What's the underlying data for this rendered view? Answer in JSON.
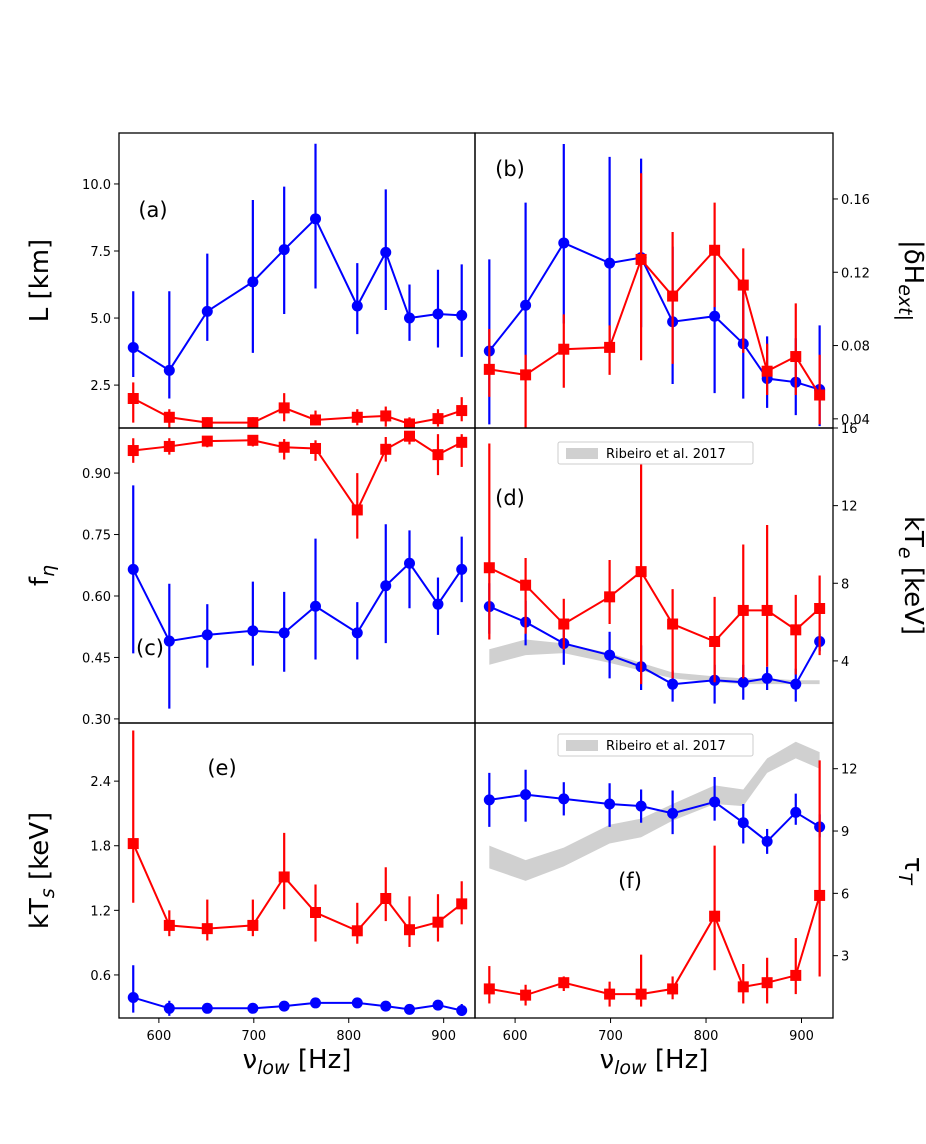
{
  "chart_data": [
    {
      "panel": "a",
      "type": "line",
      "panel_label": "(a)",
      "xlabel": "",
      "ylabel": "L [km]",
      "ylabel_side": "left",
      "xlim": [
        558,
        933
      ],
      "ylim": [
        0.9,
        11.9
      ],
      "yticks": [
        2.5,
        5.0,
        7.5,
        10.0
      ],
      "ytick_labels": [
        "2.5",
        "5.0",
        "7.5",
        "10.0"
      ],
      "x_ticks_shown": false,
      "series": [
        {
          "name": "blue",
          "color": "#0000ff",
          "marker": "circle",
          "x": [
            573,
            611,
            651,
            699,
            732,
            765,
            809,
            839,
            864,
            894,
            919
          ],
          "y": [
            3.9,
            3.05,
            5.25,
            6.35,
            7.55,
            8.7,
            5.45,
            7.45,
            5.0,
            5.15,
            5.1
          ],
          "err_low": [
            1.1,
            1.05,
            1.1,
            2.65,
            2.4,
            2.6,
            1.05,
            2.15,
            0.85,
            1.25,
            1.55
          ],
          "err_high": [
            2.1,
            2.95,
            2.15,
            3.05,
            2.35,
            2.8,
            1.6,
            2.35,
            1.25,
            1.65,
            1.9
          ]
        },
        {
          "name": "red",
          "color": "#ff0000",
          "marker": "square",
          "x": [
            573,
            611,
            651,
            699,
            732,
            765,
            809,
            839,
            864,
            894,
            919
          ],
          "y": [
            2.0,
            1.3,
            1.1,
            1.1,
            1.65,
            1.2,
            1.3,
            1.35,
            1.05,
            1.25,
            1.55
          ],
          "err_low": [
            0.9,
            0.6,
            0.2,
            0.2,
            0.5,
            0.2,
            0.3,
            0.4,
            0.2,
            0.3,
            0.4
          ],
          "err_high": [
            0.6,
            0.3,
            0.2,
            0.2,
            0.55,
            0.35,
            0.3,
            0.35,
            0.25,
            0.35,
            0.5
          ]
        }
      ]
    },
    {
      "panel": "b",
      "type": "line",
      "panel_label": "(b)",
      "xlabel": "",
      "ylabel": "|δḢ_ext|",
      "ylabel_side": "right",
      "xlim": [
        558,
        933
      ],
      "ylim": [
        0.035,
        0.196
      ],
      "yticks": [
        0.04,
        0.08,
        0.12,
        0.16
      ],
      "ytick_labels": [
        "0.04",
        "0.08",
        "0.12",
        "0.16"
      ],
      "x_ticks_shown": false,
      "series": [
        {
          "name": "blue",
          "color": "#0000ff",
          "marker": "circle",
          "x": [
            573,
            611,
            651,
            699,
            732,
            765,
            809,
            839,
            864,
            894,
            919
          ],
          "y": [
            0.077,
            0.102,
            0.136,
            0.125,
            0.128,
            0.093,
            0.096,
            0.081,
            0.062,
            0.06,
            0.056
          ],
          "err_low": [
            0.04,
            0.04,
            0.044,
            0.044,
            0.038,
            0.034,
            0.042,
            0.03,
            0.016,
            0.018,
            0.02
          ],
          "err_high": [
            0.05,
            0.056,
            0.054,
            0.058,
            0.054,
            0.041,
            0.037,
            0.03,
            0.023,
            0.024,
            0.035
          ]
        },
        {
          "name": "red",
          "color": "#ff0000",
          "marker": "square",
          "x": [
            573,
            611,
            651,
            699,
            732,
            765,
            809,
            839,
            864,
            894,
            919
          ],
          "y": [
            0.067,
            0.064,
            0.078,
            0.079,
            0.127,
            0.107,
            0.132,
            0.113,
            0.066,
            0.074,
            0.053
          ],
          "err_low": [
            0.015,
            0.029,
            0.021,
            0.015,
            0.055,
            0.037,
            0.031,
            0.037,
            0.013,
            0.021,
            0.016
          ],
          "err_high": [
            0.022,
            0.011,
            0.019,
            0.012,
            0.047,
            0.035,
            0.026,
            0.02,
            0.015,
            0.029,
            0.022
          ]
        }
      ]
    },
    {
      "panel": "c",
      "type": "line",
      "panel_label": "(c)",
      "xlabel": "",
      "ylabel": "f_η",
      "ylabel_side": "left",
      "xlim": [
        558,
        933
      ],
      "ylim": [
        0.29,
        1.01
      ],
      "yticks": [
        0.3,
        0.45,
        0.6,
        0.75,
        0.9
      ],
      "ytick_labels": [
        "0.30",
        "0.45",
        "0.60",
        "0.75",
        "0.90"
      ],
      "x_ticks_shown": false,
      "series": [
        {
          "name": "blue",
          "color": "#0000ff",
          "marker": "circle",
          "x": [
            573,
            611,
            651,
            699,
            732,
            765,
            809,
            839,
            864,
            894,
            919
          ],
          "y": [
            0.665,
            0.49,
            0.505,
            0.515,
            0.51,
            0.575,
            0.51,
            0.625,
            0.68,
            0.58,
            0.665
          ],
          "err_low": [
            0.205,
            0.165,
            0.08,
            0.085,
            0.095,
            0.13,
            0.065,
            0.14,
            0.11,
            0.075,
            0.08
          ],
          "err_high": [
            0.205,
            0.14,
            0.075,
            0.12,
            0.1,
            0.165,
            0.075,
            0.15,
            0.08,
            0.065,
            0.08
          ]
        },
        {
          "name": "red",
          "color": "#ff0000",
          "marker": "square",
          "x": [
            573,
            611,
            651,
            699,
            732,
            765,
            809,
            839,
            864,
            894,
            919
          ],
          "y": [
            0.955,
            0.965,
            0.978,
            0.98,
            0.963,
            0.96,
            0.81,
            0.958,
            0.99,
            0.945,
            0.975
          ],
          "err_low": [
            0.03,
            0.02,
            0.015,
            0.015,
            0.03,
            0.03,
            0.07,
            0.03,
            0.02,
            0.05,
            0.06
          ],
          "err_high": [
            0.03,
            0.02,
            0.01,
            0.01,
            0.02,
            0.02,
            0.09,
            0.03,
            0.01,
            0.05,
            0.02
          ]
        }
      ]
    },
    {
      "panel": "d",
      "type": "line",
      "panel_label": "(d)",
      "xlabel": "",
      "ylabel": "kT_e [keV]",
      "ylabel_side": "right",
      "xlim": [
        558,
        933
      ],
      "ylim": [
        0.8,
        16
      ],
      "yticks": [
        4,
        8,
        12,
        16
      ],
      "ytick_labels": [
        "4",
        "8",
        "12",
        "16"
      ],
      "x_ticks_shown": false,
      "legend": {
        "label": "Ribeiro et al. 2017",
        "position": "top-center"
      },
      "band": {
        "label": "Ribeiro et al. 2017",
        "color": "#d0d0d0",
        "x": [
          573,
          611,
          651,
          699,
          732,
          765,
          809,
          839,
          864,
          894,
          919
        ],
        "low": [
          3.8,
          4.3,
          4.4,
          3.9,
          3.5,
          3.1,
          2.9,
          2.8,
          2.8,
          2.8,
          2.8
        ],
        "high": [
          4.6,
          5.1,
          4.9,
          4.4,
          3.9,
          3.4,
          3.2,
          3.1,
          3.1,
          3.0,
          3.0
        ]
      },
      "series": [
        {
          "name": "blue",
          "color": "#0000ff",
          "marker": "circle",
          "x": [
            573,
            611,
            651,
            699,
            732,
            765,
            809,
            839,
            864,
            894,
            919
          ],
          "y": [
            6.8,
            6.0,
            4.9,
            4.3,
            3.7,
            2.8,
            3.0,
            2.9,
            3.1,
            2.8,
            5.0
          ],
          "err_low": [
            1.4,
            1.2,
            1.1,
            1.2,
            1.2,
            0.9,
            1.2,
            0.9,
            0.6,
            0.9,
            0.5
          ],
          "err_high": [
            1.2,
            1.1,
            1.0,
            1.2,
            1.1,
            0.7,
            0.8,
            0.9,
            0.6,
            0.8,
            0.4
          ]
        },
        {
          "name": "red",
          "color": "#ff0000",
          "marker": "square",
          "x": [
            573,
            611,
            651,
            699,
            732,
            765,
            809,
            839,
            864,
            894,
            919
          ],
          "y": [
            8.8,
            7.9,
            5.9,
            7.3,
            8.6,
            5.9,
            5.0,
            6.6,
            6.6,
            5.6,
            6.7
          ],
          "err_low": [
            3.7,
            2.5,
            1.3,
            1.4,
            5.8,
            2.8,
            2.1,
            3.5,
            2.9,
            2.3,
            2.4
          ],
          "err_high": [
            6.4,
            1.4,
            1.3,
            1.9,
            5.9,
            1.8,
            2.3,
            3.4,
            4.4,
            1.8,
            1.7
          ]
        }
      ]
    },
    {
      "panel": "e",
      "type": "line",
      "panel_label": "(e)",
      "xlabel": "ν_low [Hz]",
      "ylabel": "kT_s [keV]",
      "ylabel_side": "left",
      "xlim": [
        558,
        933
      ],
      "ylim": [
        0.2,
        2.94
      ],
      "yticks": [
        0.6,
        1.2,
        1.8,
        2.4
      ],
      "ytick_labels": [
        "0.6",
        "1.2",
        "1.8",
        "2.4"
      ],
      "xticks": [
        600,
        700,
        800,
        900
      ],
      "xtick_labels": [
        "600",
        "700",
        "800",
        "900"
      ],
      "series": [
        {
          "name": "blue",
          "color": "#0000ff",
          "marker": "circle",
          "x": [
            573,
            611,
            651,
            699,
            732,
            765,
            809,
            839,
            864,
            894,
            919
          ],
          "y": [
            0.39,
            0.29,
            0.29,
            0.29,
            0.31,
            0.34,
            0.34,
            0.31,
            0.28,
            0.32,
            0.27
          ],
          "err_low": [
            0.14,
            0.07,
            0.02,
            0.02,
            0.03,
            0.03,
            0.03,
            0.03,
            0.03,
            0.03,
            0.05
          ],
          "err_high": [
            0.3,
            0.07,
            0.02,
            0.02,
            0.03,
            0.03,
            0.03,
            0.03,
            0.03,
            0.03,
            0.06
          ]
        },
        {
          "name": "red",
          "color": "#ff0000",
          "marker": "square",
          "x": [
            573,
            611,
            651,
            699,
            732,
            765,
            809,
            839,
            864,
            894,
            919
          ],
          "y": [
            1.82,
            1.06,
            1.03,
            1.06,
            1.51,
            1.18,
            1.01,
            1.31,
            1.02,
            1.09,
            1.26
          ],
          "err_low": [
            0.55,
            0.1,
            0.11,
            0.1,
            0.3,
            0.27,
            0.12,
            0.21,
            0.16,
            0.18,
            0.19
          ],
          "err_high": [
            1.05,
            0.14,
            0.27,
            0.24,
            0.41,
            0.26,
            0.26,
            0.29,
            0.31,
            0.26,
            0.21
          ]
        }
      ]
    },
    {
      "panel": "f",
      "type": "line",
      "panel_label": "(f)",
      "xlabel": "ν_low [Hz]",
      "ylabel": "τ_T",
      "ylabel_side": "right",
      "xlim": [
        558,
        933
      ],
      "ylim": [
        0,
        14.2
      ],
      "yticks": [
        3,
        6,
        9,
        12
      ],
      "ytick_labels": [
        "3",
        "6",
        "9",
        "12"
      ],
      "xticks": [
        600,
        700,
        800,
        900
      ],
      "xtick_labels": [
        "600",
        "700",
        "800",
        "900"
      ],
      "legend": {
        "label": "Ribeiro et al. 2017",
        "position": "top-center"
      },
      "band": {
        "label": "Ribeiro et al. 2017",
        "color": "#d0d0d0",
        "x": [
          573,
          611,
          651,
          699,
          732,
          765,
          809,
          839,
          864,
          894,
          919
        ],
        "low": [
          7.2,
          6.6,
          7.3,
          8.4,
          8.7,
          9.5,
          10.3,
          10.2,
          11.8,
          12.5,
          12.0
        ],
        "high": [
          8.3,
          7.6,
          8.2,
          9.3,
          9.6,
          10.3,
          11.2,
          11.0,
          12.5,
          13.3,
          12.8
        ]
      },
      "series": [
        {
          "name": "blue",
          "color": "#0000ff",
          "marker": "circle",
          "x": [
            573,
            611,
            651,
            699,
            732,
            765,
            809,
            839,
            864,
            894,
            919
          ],
          "y": [
            10.5,
            10.75,
            10.55,
            10.3,
            10.2,
            9.85,
            10.4,
            9.4,
            8.5,
            9.9,
            9.2
          ],
          "err_low": [
            1.3,
            1.3,
            0.8,
            1.1,
            0.8,
            1.0,
            0.9,
            1.0,
            0.6,
            0.6,
            0.5
          ],
          "err_high": [
            1.3,
            1.2,
            0.8,
            1.0,
            0.8,
            1.1,
            1.2,
            0.9,
            0.6,
            0.9,
            0.6
          ]
        },
        {
          "name": "red",
          "color": "#ff0000",
          "marker": "square",
          "x": [
            573,
            611,
            651,
            699,
            732,
            765,
            809,
            839,
            864,
            894,
            919
          ],
          "y": [
            1.4,
            1.1,
            1.7,
            1.15,
            1.15,
            1.4,
            4.9,
            1.5,
            1.7,
            2.05,
            5.9
          ],
          "err_low": [
            0.7,
            0.5,
            0.4,
            0.6,
            0.6,
            0.5,
            2.6,
            0.8,
            1.0,
            0.9,
            3.9
          ],
          "err_high": [
            1.1,
            0.5,
            0.3,
            0.6,
            1.9,
            0.6,
            3.4,
            1.1,
            1.2,
            1.8,
            6.5
          ]
        }
      ]
    }
  ]
}
